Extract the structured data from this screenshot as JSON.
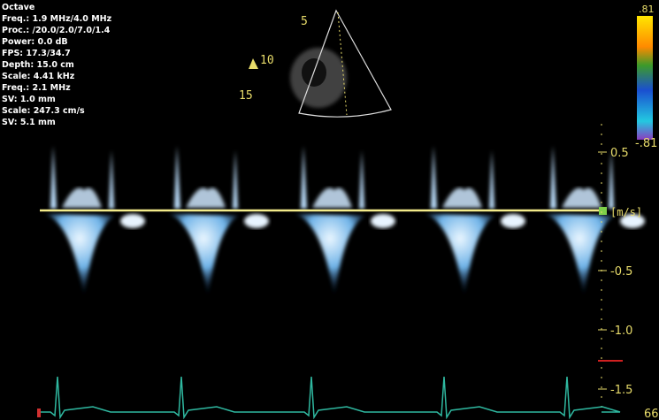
{
  "settings": [
    "Octave",
    "Freq.: 1.9 MHz/4.0 MHz",
    "Proc.: /20.0/2.0/7.0/1.4",
    "Power: 0.0 dB",
    "FPS: 17.3/34.7",
    "Depth: 15.0 cm",
    "Scale: 4.41 kHz",
    "Freq.: 2.1 MHz",
    "SV: 1.0 mm",
    "Scale: 247.3 cm/s",
    "SV: 5.1 mm"
  ],
  "sector_depths": [
    "5",
    "10",
    "15"
  ],
  "color_bar": {
    "top": ".81",
    "bottom": "-.81"
  },
  "velocity_scale": {
    "unit": "[m/s]",
    "ticks": [
      "0.5",
      "-0.5",
      "-1.0",
      "-1.5"
    ]
  },
  "heart_rate": "66"
}
